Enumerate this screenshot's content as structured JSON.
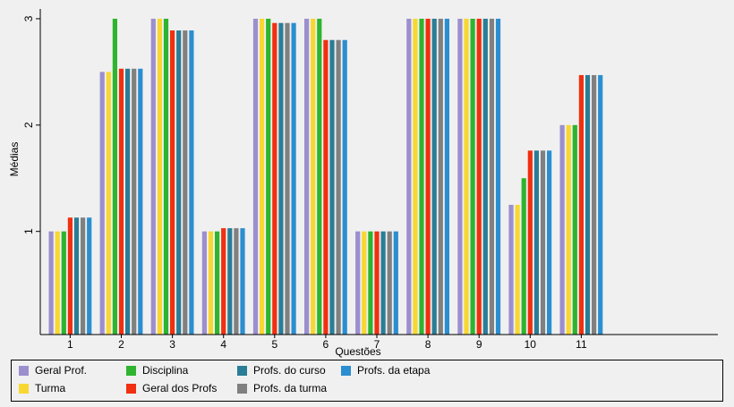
{
  "chart_data": {
    "type": "bar",
    "title": "",
    "xlabel": "Questões",
    "ylabel": "Médias",
    "categories": [
      "1",
      "2",
      "3",
      "4",
      "5",
      "6",
      "7",
      "8",
      "9",
      "10",
      "11"
    ],
    "yticks": [
      1,
      2,
      3
    ],
    "ylim": [
      0.03,
      3.05
    ],
    "grid": false,
    "legend_position": "bottom",
    "series": [
      {
        "name": "Geral Prof.",
        "color": "#9b8fce",
        "values": [
          1.0,
          2.5,
          3.0,
          1.0,
          3.0,
          3.0,
          1.0,
          3.0,
          3.0,
          1.25,
          2.0
        ]
      },
      {
        "name": "Turma",
        "color": "#f8d731",
        "values": [
          1.0,
          2.5,
          3.0,
          1.0,
          3.0,
          3.0,
          1.0,
          3.0,
          3.0,
          1.25,
          2.0
        ]
      },
      {
        "name": "Disciplina",
        "color": "#2eb42e",
        "values": [
          1.0,
          3.0,
          3.0,
          1.0,
          3.0,
          3.0,
          1.0,
          3.0,
          3.0,
          1.5,
          2.0
        ]
      },
      {
        "name": "Geral dos Profs",
        "color": "#f03010",
        "values": [
          1.13,
          2.53,
          2.89,
          1.03,
          2.96,
          2.8,
          1.0,
          3.0,
          3.0,
          1.76,
          2.47
        ]
      },
      {
        "name": "Profs. do curso",
        "color": "#2a7d96",
        "values": [
          1.13,
          2.53,
          2.89,
          1.03,
          2.96,
          2.8,
          1.0,
          3.0,
          3.0,
          1.76,
          2.47
        ]
      },
      {
        "name": "Profs. da turma",
        "color": "#808080",
        "values": [
          1.13,
          2.53,
          2.89,
          1.03,
          2.96,
          2.8,
          1.0,
          3.0,
          3.0,
          1.76,
          2.47
        ]
      },
      {
        "name": "Profs. da etapa",
        "color": "#2b8ed0",
        "values": [
          1.13,
          2.53,
          2.89,
          1.03,
          2.96,
          2.8,
          1.0,
          3.0,
          3.0,
          1.76,
          2.47
        ]
      }
    ]
  }
}
